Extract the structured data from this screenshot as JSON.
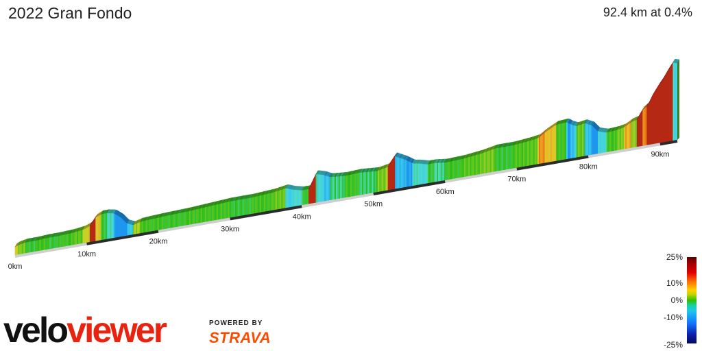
{
  "title": "2022 Gran Fondo",
  "summary": "92.4 km at 0.4%",
  "chart_data": {
    "type": "area",
    "title": "2022 Gran Fondo",
    "xlabel": "",
    "ylabel": "",
    "x_unit": "km",
    "xlim": [
      0,
      92.4
    ],
    "distance_km": 92.4,
    "average_grade_pct": 0.4,
    "tick_labels": [
      "0km",
      "10km",
      "20km",
      "30km",
      "40km",
      "50km",
      "60km",
      "70km",
      "80km",
      "90km"
    ],
    "tick_values": [
      0,
      10,
      20,
      30,
      40,
      50,
      60,
      70,
      80,
      90
    ],
    "profile_km": [
      0,
      0.5,
      1.5,
      3,
      4.5,
      6,
      8,
      9.5,
      10.5,
      11.2,
      12,
      12.8,
      13.8,
      14.8,
      15.6,
      16.5,
      17.5,
      19,
      21,
      24,
      27,
      30,
      33,
      36,
      37.8,
      38.8,
      40,
      41,
      42,
      43,
      44,
      46,
      48,
      50.5,
      52,
      53,
      54.5,
      55.5,
      56.5,
      57.5,
      58.5,
      60,
      62.5,
      65,
      67,
      69.5,
      71.5,
      73,
      74,
      75.5,
      77,
      77.5,
      78.3,
      79.5,
      80.5,
      81.3,
      82.5,
      84,
      85,
      86,
      86.8,
      87.5,
      88.3,
      89,
      89.8,
      90.4,
      91,
      91.8,
      92.4
    ],
    "profile_height": [
      12,
      14,
      16,
      16,
      17,
      17,
      18,
      20,
      24,
      34,
      38,
      38,
      36,
      28,
      18,
      14,
      17,
      18,
      19,
      20,
      22,
      24,
      24,
      26,
      29,
      25,
      22,
      22,
      42,
      39,
      34,
      32,
      33,
      31,
      34,
      48,
      40,
      33,
      31,
      28,
      28,
      26,
      27,
      30,
      34,
      34,
      36,
      38,
      45,
      53,
      54,
      50,
      46,
      48,
      43,
      33,
      29,
      30,
      32,
      38,
      40,
      52,
      58,
      72,
      84,
      92,
      102,
      114,
      112
    ],
    "color_scale": {
      "labels": [
        "25%",
        "10%",
        "0%",
        "-10%",
        "-25%"
      ],
      "values": [
        25,
        10,
        0,
        -10,
        -25
      ]
    }
  },
  "brand": {
    "velo": "velo",
    "viewer": "viewer",
    "powered": "POWERED BY",
    "strava": "STRAVA"
  }
}
